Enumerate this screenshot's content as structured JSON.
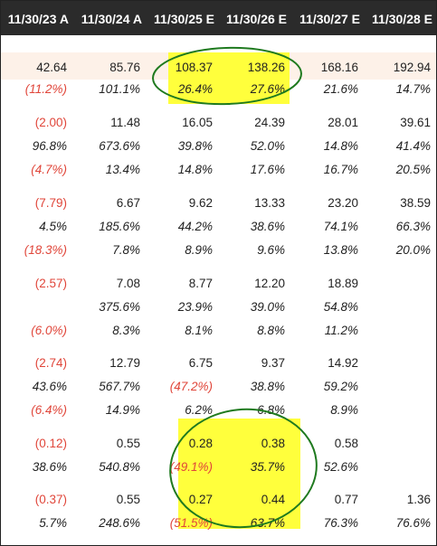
{
  "header": {
    "columns": [
      "11/30/23 A",
      "11/30/24 A",
      "11/30/25 E",
      "11/30/26 E",
      "11/30/27 E",
      "11/30/28 E"
    ]
  },
  "rows": [
    {
      "style": "normal",
      "cells": [
        {
          "text": "42.64"
        },
        {
          "text": "85.76"
        },
        {
          "text": "108.37"
        },
        {
          "text": "138.26"
        },
        {
          "text": "168.16"
        },
        {
          "text": "192.94"
        }
      ]
    },
    {
      "style": "italic",
      "cells": [
        {
          "text": "(11.2%)",
          "neg": true
        },
        {
          "text": "101.1%"
        },
        {
          "text": "26.4%"
        },
        {
          "text": "27.6%"
        },
        {
          "text": "21.6%"
        },
        {
          "text": "14.7%"
        }
      ]
    },
    {
      "style": "normal",
      "cells": [
        {
          "text": "(2.00)",
          "neg": true
        },
        {
          "text": "11.48"
        },
        {
          "text": "16.05"
        },
        {
          "text": "24.39"
        },
        {
          "text": "28.01"
        },
        {
          "text": "39.61"
        }
      ]
    },
    {
      "style": "italic",
      "cells": [
        {
          "text": "96.8%"
        },
        {
          "text": "673.6%"
        },
        {
          "text": "39.8%"
        },
        {
          "text": "52.0%"
        },
        {
          "text": "14.8%"
        },
        {
          "text": "41.4%"
        }
      ]
    },
    {
      "style": "italic",
      "cells": [
        {
          "text": "(4.7%)",
          "neg": true
        },
        {
          "text": "13.4%"
        },
        {
          "text": "14.8%"
        },
        {
          "text": "17.6%"
        },
        {
          "text": "16.7%"
        },
        {
          "text": "20.5%"
        }
      ]
    },
    {
      "style": "normal",
      "cells": [
        {
          "text": "(7.79)",
          "neg": true
        },
        {
          "text": "6.67"
        },
        {
          "text": "9.62"
        },
        {
          "text": "13.33"
        },
        {
          "text": "23.20"
        },
        {
          "text": "38.59"
        }
      ]
    },
    {
      "style": "italic",
      "cells": [
        {
          "text": "4.5%"
        },
        {
          "text": "185.6%"
        },
        {
          "text": "44.2%"
        },
        {
          "text": "38.6%"
        },
        {
          "text": "74.1%"
        },
        {
          "text": "66.3%"
        }
      ]
    },
    {
      "style": "italic",
      "cells": [
        {
          "text": "(18.3%)",
          "neg": true
        },
        {
          "text": "7.8%"
        },
        {
          "text": "8.9%"
        },
        {
          "text": "9.6%"
        },
        {
          "text": "13.8%"
        },
        {
          "text": "20.0%"
        }
      ]
    },
    {
      "style": "normal",
      "cells": [
        {
          "text": "(2.57)",
          "neg": true
        },
        {
          "text": "7.08"
        },
        {
          "text": "8.77"
        },
        {
          "text": "12.20"
        },
        {
          "text": "18.89"
        },
        {
          "text": ""
        }
      ]
    },
    {
      "style": "italic",
      "cells": [
        {
          "text": ""
        },
        {
          "text": "375.6%"
        },
        {
          "text": "23.9%"
        },
        {
          "text": "39.0%"
        },
        {
          "text": "54.8%"
        },
        {
          "text": ""
        }
      ]
    },
    {
      "style": "italic",
      "cells": [
        {
          "text": "(6.0%)",
          "neg": true
        },
        {
          "text": "8.3%"
        },
        {
          "text": "8.1%"
        },
        {
          "text": "8.8%"
        },
        {
          "text": "11.2%"
        },
        {
          "text": ""
        }
      ]
    },
    {
      "style": "normal",
      "cells": [
        {
          "text": "(2.74)",
          "neg": true
        },
        {
          "text": "12.79"
        },
        {
          "text": "6.75"
        },
        {
          "text": "9.37"
        },
        {
          "text": "14.92"
        },
        {
          "text": ""
        }
      ]
    },
    {
      "style": "italic",
      "cells": [
        {
          "text": "43.6%"
        },
        {
          "text": "567.7%"
        },
        {
          "text": "(47.2%)",
          "neg": true
        },
        {
          "text": "38.8%"
        },
        {
          "text": "59.2%"
        },
        {
          "text": ""
        }
      ]
    },
    {
      "style": "italic",
      "cells": [
        {
          "text": "(6.4%)",
          "neg": true
        },
        {
          "text": "14.9%"
        },
        {
          "text": "6.2%"
        },
        {
          "text": "6.8%"
        },
        {
          "text": "8.9%"
        },
        {
          "text": ""
        }
      ]
    },
    {
      "style": "normal",
      "cells": [
        {
          "text": "(0.12)",
          "neg": true
        },
        {
          "text": "0.55"
        },
        {
          "text": "0.28"
        },
        {
          "text": "0.38"
        },
        {
          "text": "0.58"
        },
        {
          "text": ""
        }
      ]
    },
    {
      "style": "italic",
      "cells": [
        {
          "text": "38.6%"
        },
        {
          "text": "540.8%"
        },
        {
          "text": "(49.1%)",
          "neg": true
        },
        {
          "text": "35.7%"
        },
        {
          "text": "52.6%"
        },
        {
          "text": ""
        }
      ]
    },
    {
      "style": "normal",
      "cells": [
        {
          "text": "(0.37)",
          "neg": true
        },
        {
          "text": "0.55"
        },
        {
          "text": "0.27"
        },
        {
          "text": "0.44"
        },
        {
          "text": "0.77"
        },
        {
          "text": "1.36"
        }
      ]
    },
    {
      "style": "italic",
      "cells": [
        {
          "text": "5.7%"
        },
        {
          "text": "248.6%"
        },
        {
          "text": "(51.5%)",
          "neg": true
        },
        {
          "text": "63.7%"
        },
        {
          "text": "76.3%"
        },
        {
          "text": "76.6%"
        }
      ]
    }
  ],
  "colors": {
    "header_bg": "#2b2b2b",
    "header_text": "#ffffff",
    "highlight": "#ffff3c",
    "oval": "#1f7a1f",
    "negative": "#e0463a",
    "first_row_band": "#fdf1e8"
  }
}
